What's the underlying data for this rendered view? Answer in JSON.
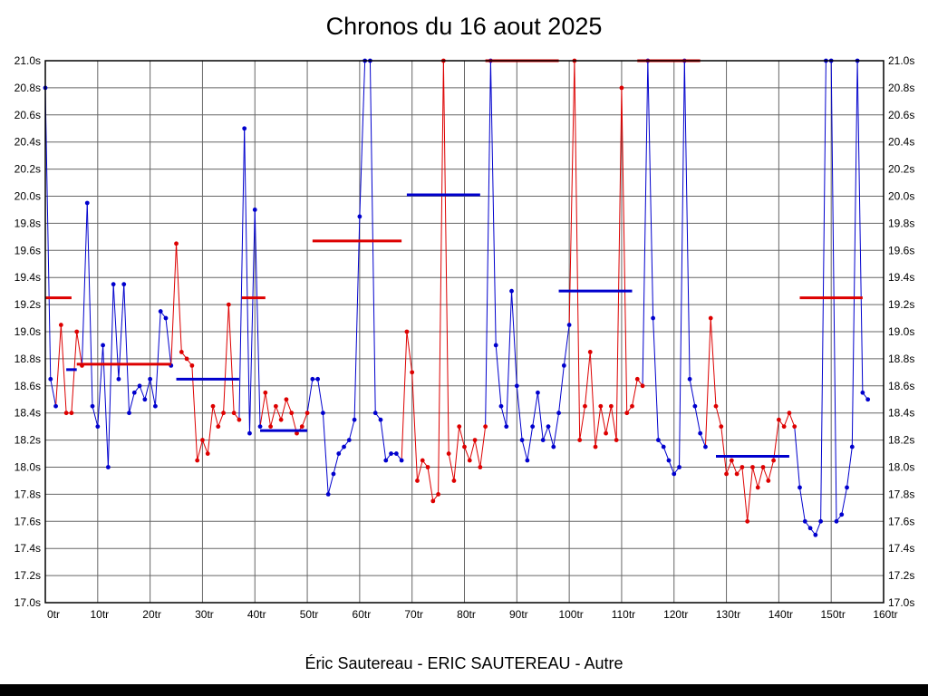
{
  "title": "Chronos du 16 aout 2025",
  "caption": "Éric Sautereau - ERIC SAUTEREAU - Autre",
  "chart_data": {
    "type": "line",
    "title": "Chronos du 16 aout 2025",
    "xlabel": "tr",
    "ylabel": "s",
    "x_unit": "tr",
    "y_unit": "s",
    "x_range": [
      0,
      160
    ],
    "x_tick_step": 10,
    "y_range": [
      17.0,
      21.0
    ],
    "y_tick_step": 0.2,
    "grid": true,
    "legend": "none",
    "colors": {
      "blue": "#0000cd",
      "red": "#dd0000",
      "grid": "#666666",
      "axis": "#000000"
    },
    "segments": [
      {
        "color": "blue",
        "start": 0,
        "values": [
          20.8,
          18.65,
          18.45
        ]
      },
      {
        "color": "red",
        "start": 3,
        "values": [
          19.05,
          18.4,
          18.4,
          19.0,
          18.75
        ]
      },
      {
        "color": "blue",
        "start": 8,
        "values": [
          19.95,
          18.45,
          18.3,
          18.9,
          18.0,
          19.35,
          18.65,
          19.35,
          18.4,
          18.55,
          18.6,
          18.5,
          18.65,
          18.45,
          19.15,
          19.1,
          18.75
        ]
      },
      {
        "color": "red",
        "start": 25,
        "values": [
          19.65,
          18.85,
          18.8,
          18.75,
          18.05,
          18.2,
          18.1,
          18.45,
          18.3,
          18.4,
          19.2,
          18.4,
          18.35
        ]
      },
      {
        "color": "blue",
        "start": 38,
        "values": [
          20.5,
          18.25,
          19.9,
          18.3
        ]
      },
      {
        "color": "red",
        "start": 42,
        "values": [
          18.55,
          18.3,
          18.45,
          18.35,
          18.5,
          18.4,
          18.25,
          18.3,
          18.4
        ]
      },
      {
        "color": "blue",
        "start": 51,
        "values": [
          18.65,
          18.65,
          18.4,
          17.8,
          17.95,
          18.1,
          18.15,
          18.2,
          18.35,
          19.85,
          21.0,
          21.0,
          18.4,
          18.35,
          18.05,
          18.1,
          18.1,
          18.05
        ]
      },
      {
        "color": "red",
        "start": 69,
        "values": [
          19.0,
          18.7,
          17.9,
          18.05,
          18.0,
          17.75,
          17.8,
          21.0,
          18.1,
          17.9,
          18.3,
          18.15,
          18.05,
          18.2,
          18.0,
          18.3
        ]
      },
      {
        "color": "blue",
        "start": 85,
        "values": [
          21.0,
          18.9,
          18.45,
          18.3,
          19.3,
          18.6,
          18.2,
          18.05,
          18.3,
          18.55,
          18.2,
          18.3,
          18.15,
          18.4
        ]
      },
      {
        "color": "blue",
        "start": 99,
        "values": [
          18.75,
          19.05
        ]
      },
      {
        "color": "red",
        "start": 101,
        "values": [
          21.0,
          18.2,
          18.45,
          18.85,
          18.15,
          18.45,
          18.25,
          18.45,
          18.2,
          20.8,
          18.4,
          18.45,
          18.65,
          18.6
        ]
      },
      {
        "color": "blue",
        "start": 115,
        "values": [
          21.0,
          19.1,
          18.2,
          18.15,
          18.05,
          17.95,
          18.0,
          21.0,
          18.65,
          18.45,
          18.25,
          18.15
        ]
      },
      {
        "color": "red",
        "start": 127,
        "values": [
          19.1,
          18.45,
          18.3,
          17.95,
          18.05,
          17.95,
          18.0,
          17.6,
          18.0,
          17.85,
          18.0,
          17.9,
          18.05,
          18.35,
          18.3,
          18.4,
          18.3
        ]
      },
      {
        "color": "blue",
        "start": 144,
        "values": [
          17.85,
          17.6,
          17.55,
          17.5,
          17.6,
          21.0,
          21.0,
          17.6,
          17.65,
          17.85,
          18.15,
          21.0,
          18.55,
          18.5
        ]
      }
    ],
    "mean_lines": [
      {
        "color": "red",
        "y": 19.25,
        "x1": 0,
        "x2": 5
      },
      {
        "color": "blue",
        "y": 18.72,
        "x1": 4,
        "x2": 6
      },
      {
        "color": "red",
        "y": 18.76,
        "x1": 6,
        "x2": 24
      },
      {
        "color": "blue",
        "y": 18.65,
        "x1": 25,
        "x2": 37
      },
      {
        "color": "red",
        "y": 19.25,
        "x1": 37.5,
        "x2": 42
      },
      {
        "color": "blue",
        "y": 18.27,
        "x1": 41,
        "x2": 50
      },
      {
        "color": "red",
        "y": 19.67,
        "x1": 51,
        "x2": 68
      },
      {
        "color": "blue",
        "y": 20.01,
        "x1": 69,
        "x2": 83
      },
      {
        "color": "red",
        "y": 21.0,
        "x1": 84,
        "x2": 98
      },
      {
        "color": "blue",
        "y": 19.3,
        "x1": 98,
        "x2": 112
      },
      {
        "color": "red",
        "y": 21.0,
        "x1": 113,
        "x2": 125
      },
      {
        "color": "blue",
        "y": 18.08,
        "x1": 128,
        "x2": 142
      },
      {
        "color": "red",
        "y": 19.25,
        "x1": 144,
        "x2": 156
      }
    ]
  }
}
